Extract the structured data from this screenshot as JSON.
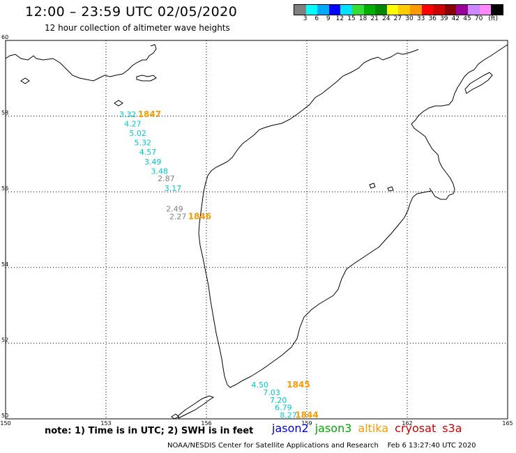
{
  "header": {
    "title": "12:00 – 23:59 UTC 02/05/2020",
    "subtitle": "12 hour collection of altimeter wave heights"
  },
  "legend": {
    "unit": "(ft)",
    "colors": [
      "#808080",
      "#00ffff",
      "#00aaff",
      "#0000ff",
      "#00e0ff",
      "#33dd33",
      "#00b000",
      "#008800",
      "#ffff00",
      "#ffcc00",
      "#ff9900",
      "#ff0000",
      "#cc0000",
      "#880000",
      "#990099",
      "#cc88ff",
      "#ff88ff",
      "#000000"
    ],
    "labels": [
      "3",
      "6",
      "9",
      "12",
      "15",
      "18",
      "21",
      "24",
      "27",
      "30",
      "33",
      "36",
      "39",
      "42",
      "45",
      "70"
    ]
  },
  "map": {
    "lat_labels": [
      "60",
      "58",
      "56",
      "54",
      "52",
      "50"
    ],
    "lon_labels": [
      "150",
      "153",
      "156",
      "159",
      "162",
      "165"
    ],
    "colors": {
      "coast": "#000000",
      "grid": "#000000",
      "cyan": "#00cccc",
      "gray": "#808080",
      "pass": "#ff9900"
    }
  },
  "points": [
    {
      "text": "3.32",
      "lon": 153.65,
      "lat": 58.05,
      "c": "cyan"
    },
    {
      "text": "4.27",
      "lon": 153.8,
      "lat": 57.8,
      "c": "cyan"
    },
    {
      "text": "5.02",
      "lon": 153.95,
      "lat": 57.55,
      "c": "cyan"
    },
    {
      "text": "5.32",
      "lon": 154.1,
      "lat": 57.3,
      "c": "cyan"
    },
    {
      "text": "4.57",
      "lon": 154.25,
      "lat": 57.05,
      "c": "cyan"
    },
    {
      "text": "3.49",
      "lon": 154.4,
      "lat": 56.8,
      "c": "cyan"
    },
    {
      "text": "3.48",
      "lon": 154.6,
      "lat": 56.55,
      "c": "cyan"
    },
    {
      "text": "2.87",
      "lon": 154.8,
      "lat": 56.35,
      "c": "gray"
    },
    {
      "text": "3.17",
      "lon": 155.0,
      "lat": 56.1,
      "c": "cyan"
    },
    {
      "text": "2.49",
      "lon": 155.05,
      "lat": 55.55,
      "c": "gray"
    },
    {
      "text": "2.27",
      "lon": 155.15,
      "lat": 55.35,
      "c": "gray"
    },
    {
      "text": "4.50",
      "lon": 157.6,
      "lat": 50.9,
      "c": "cyan"
    },
    {
      "text": "7.03",
      "lon": 157.95,
      "lat": 50.7,
      "c": "cyan"
    },
    {
      "text": "7.20",
      "lon": 158.15,
      "lat": 50.5,
      "c": "cyan"
    },
    {
      "text": "6.79",
      "lon": 158.3,
      "lat": 50.3,
      "c": "cyan"
    },
    {
      "text": "8.27",
      "lon": 158.45,
      "lat": 50.1,
      "c": "cyan"
    }
  ],
  "passes": [
    {
      "text": "1847",
      "lon": 154.3,
      "lat": 58.05
    },
    {
      "text": "1846",
      "lon": 155.8,
      "lat": 55.35
    },
    {
      "text": "1845",
      "lon": 158.75,
      "lat": 50.9
    },
    {
      "text": "1844",
      "lon": 159.0,
      "lat": 50.1
    }
  ],
  "footer": {
    "note": "note: 1) Time is in UTC; 2) SWH is in feet",
    "missions": [
      {
        "name": "jason2",
        "color": "#0000dd"
      },
      {
        "name": "jason3",
        "color": "#00aa00"
      },
      {
        "name": "altika",
        "color": "#ff9900"
      },
      {
        "name": "cryosat",
        "color": "#cc0000"
      },
      {
        "name": "s3a",
        "color": "#cc0000"
      }
    ],
    "credit": "NOAA/NESDIS Center for Satellite Applications and Research",
    "timestamp": "Feb  6 13:27:40 UTC 2020"
  }
}
